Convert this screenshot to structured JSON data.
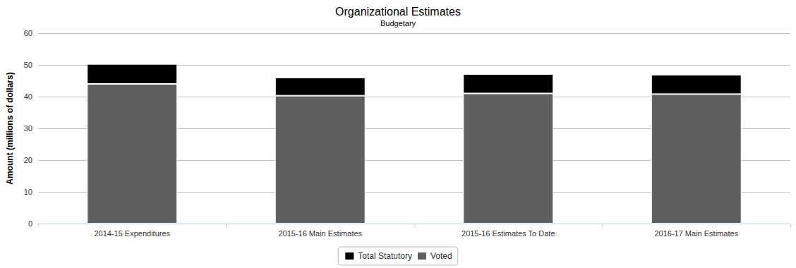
{
  "chart_data": {
    "type": "bar",
    "title": "Organizational Estimates",
    "subtitle": "Budgetary",
    "y_label": "Amount (millions of dollars)",
    "categories": [
      "2014-15 Expenditures",
      "2015-16 Main Estimates",
      "2015-16 Estimates To Date",
      "2016-17 Main Estimates"
    ],
    "series": [
      {
        "name": "Total Statutory",
        "color": "#000000",
        "values": [
          6.3,
          5.7,
          6.1,
          6.1
        ]
      },
      {
        "name": "Voted",
        "color": "#5f5f5f",
        "values": [
          44.0,
          40.3,
          41.0,
          40.8
        ]
      }
    ],
    "stacked": true,
    "ylim": [
      0,
      60
    ],
    "yticks": [
      0,
      10,
      20,
      30,
      40,
      50,
      60
    ],
    "grid": true,
    "legend": "bottom"
  }
}
